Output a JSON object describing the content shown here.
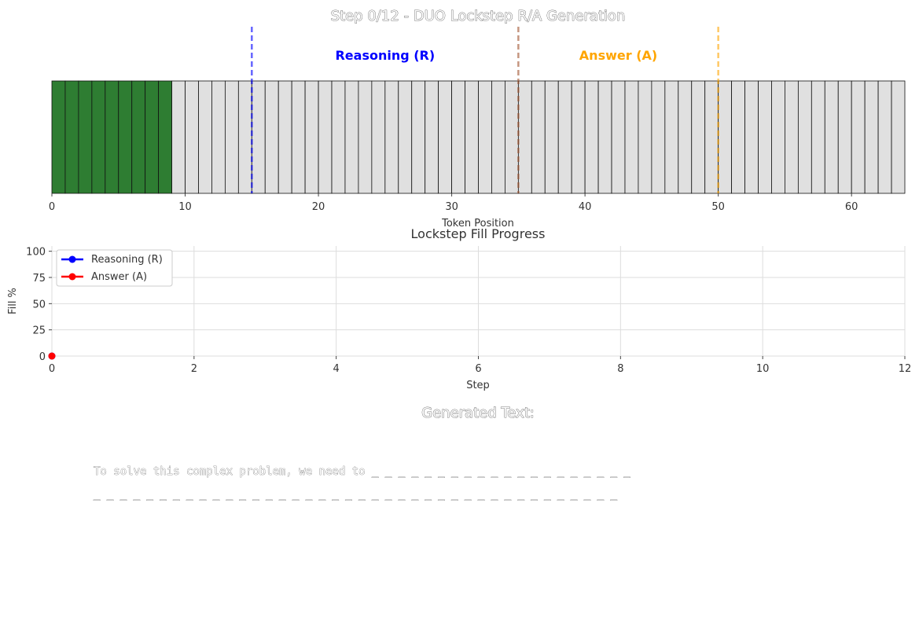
{
  "chart_data": [
    {
      "type": "bar",
      "title": "Step 0/12 - DUO Lockstep R/A Generation",
      "xlabel": "Token Position",
      "xlim": [
        0,
        64
      ],
      "x_ticks": [
        "0",
        "10",
        "20",
        "30",
        "40",
        "50",
        "60"
      ],
      "token_count": 64,
      "filled_tokens": 9,
      "colors": {
        "filled": "#2e7d32",
        "empty": "#e0e0e0",
        "reasoning": "#0000ff",
        "split": "#a0522d",
        "answer": "#ffa500"
      },
      "markers": [
        {
          "position": 15,
          "color": "#0000ff"
        },
        {
          "position": 35,
          "color": "#a0522d"
        },
        {
          "position": 50,
          "color": "#ffa500"
        }
      ],
      "region_labels": [
        {
          "text": "Reasoning (R)",
          "center": 25,
          "color": "#0000ff"
        },
        {
          "text": "Answer (A)",
          "center": 42.5,
          "color": "#ffa500"
        }
      ]
    },
    {
      "type": "line",
      "title": "Lockstep Fill Progress",
      "xlabel": "Step",
      "ylabel": "Fill %",
      "xlim": [
        0,
        12
      ],
      "ylim": [
        0,
        105
      ],
      "x_ticks": [
        "0",
        "2",
        "4",
        "6",
        "8",
        "10",
        "12"
      ],
      "y_ticks": [
        "0",
        "25",
        "50",
        "75",
        "100"
      ],
      "grid": true,
      "legend": "top-left",
      "series": [
        {
          "name": "Reasoning (R)",
          "color": "#0000ff",
          "x": [
            0
          ],
          "y": [
            0
          ]
        },
        {
          "name": "Answer (A)",
          "color": "#ff0000",
          "x": [
            0
          ],
          "y": [
            0
          ]
        }
      ]
    }
  ],
  "generated": {
    "title": "Generated Text:",
    "line1": "To solve this complex problem, we need to _ _ _ _ _ _ _ _ _ _ _ _ _ _ _ _ _ _ _ _",
    "line2": "_ _ _ _ _ _ _ _ _ _ _ _ _ _ _ _ _ _ _ _ _ _ _ _ _ _ _ _ _ _ _ _ _ _ _ _ _ _ _ _"
  }
}
